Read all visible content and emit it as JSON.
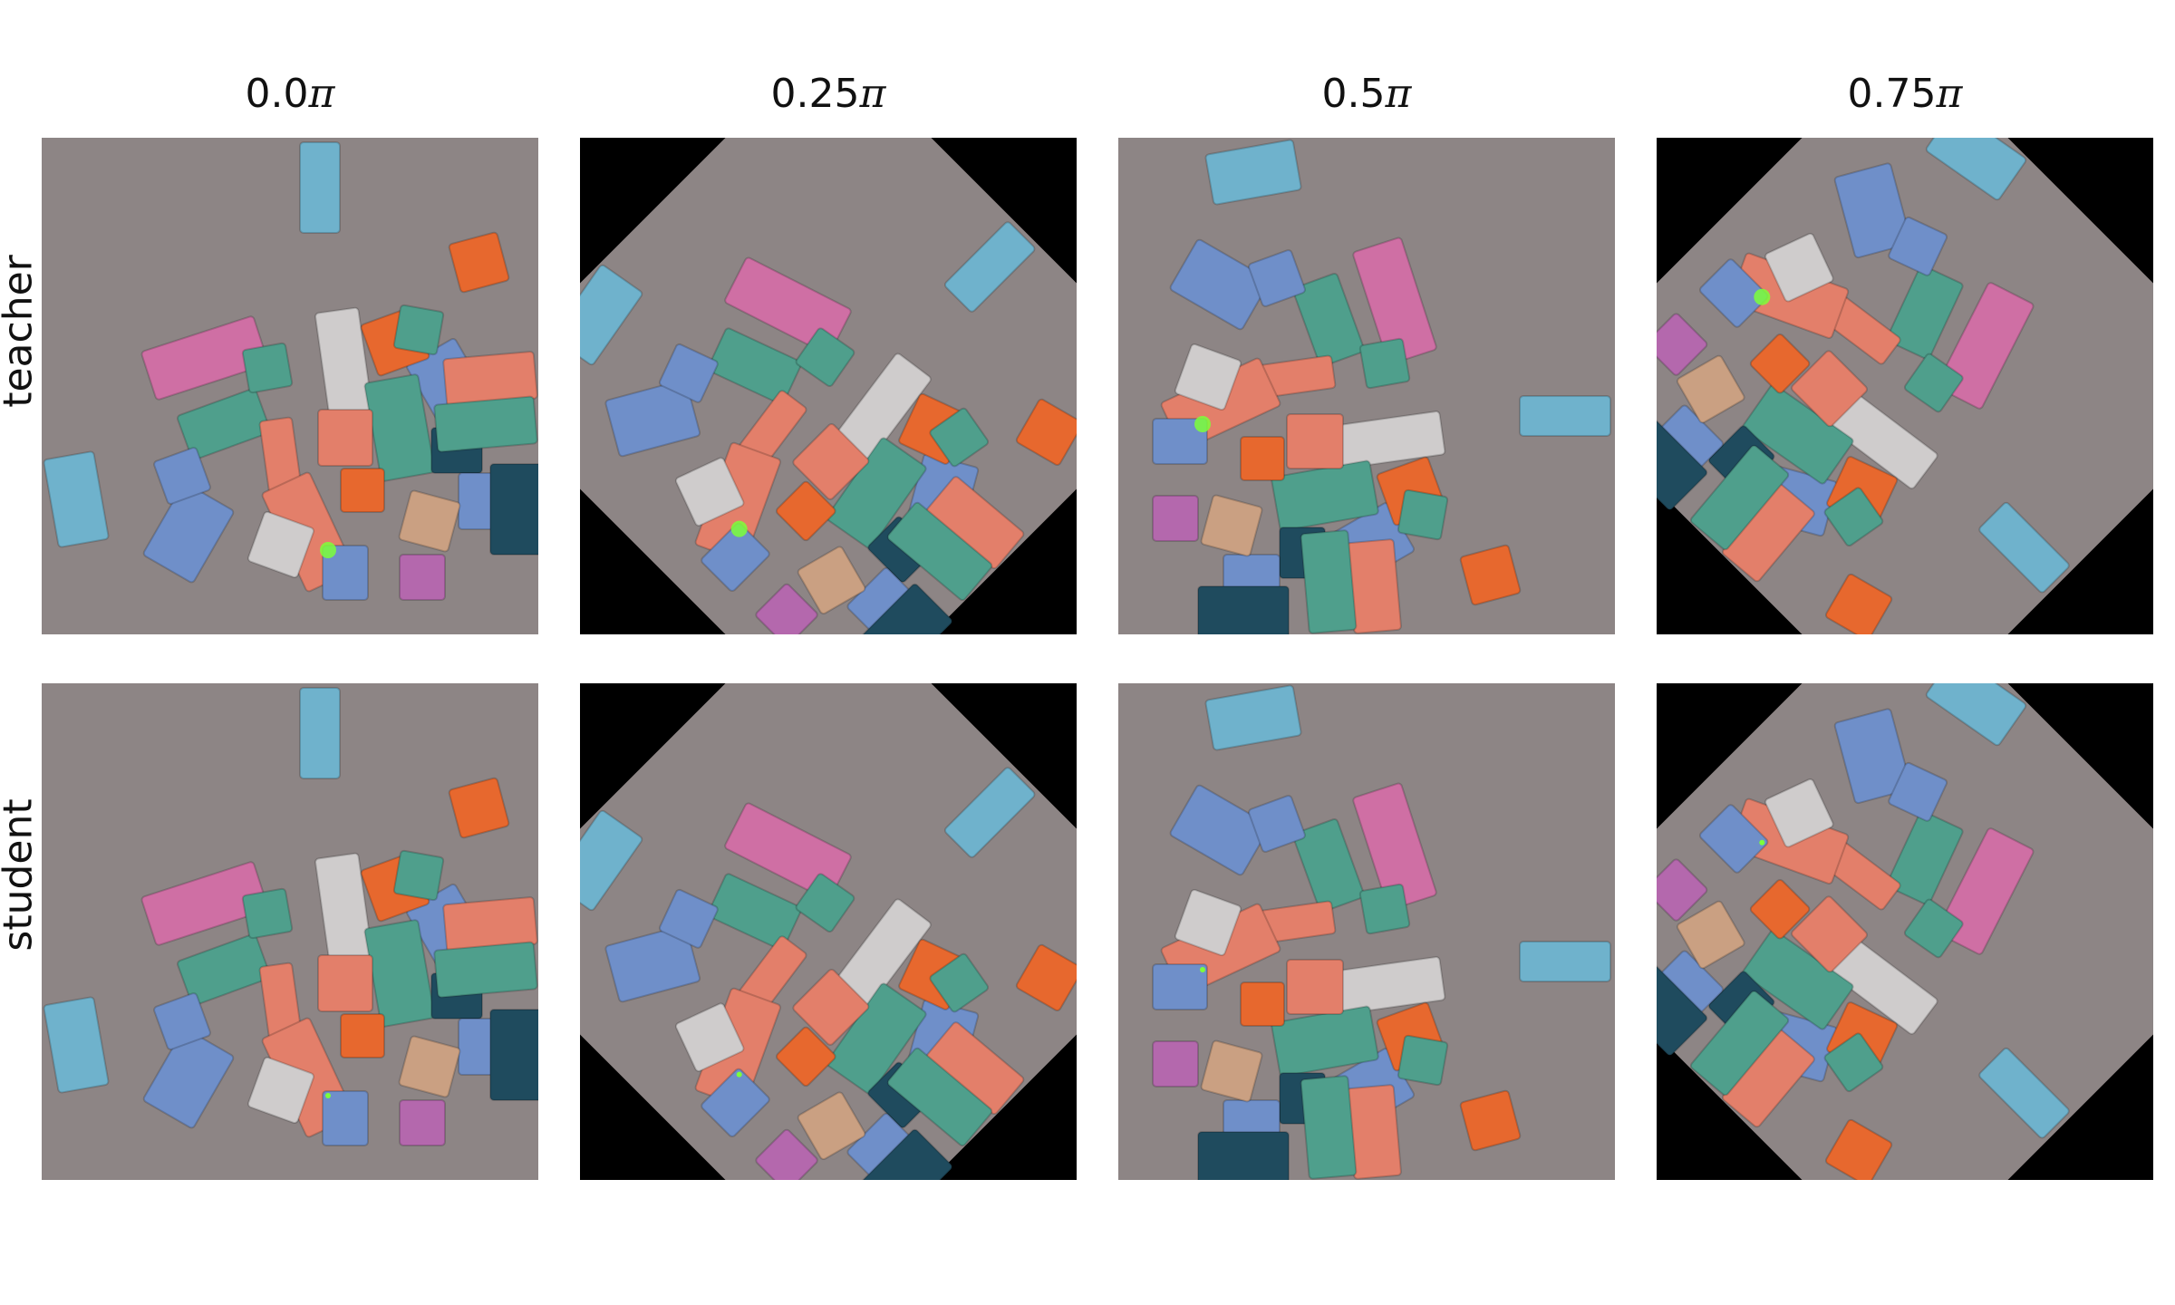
{
  "columns": [
    {
      "prefix": "0.0",
      "pi": "π"
    },
    {
      "prefix": "0.25",
      "pi": "π"
    },
    {
      "prefix": "0.5",
      "pi": "π"
    },
    {
      "prefix": "0.75",
      "pi": "π"
    }
  ],
  "rows": [
    "teacher",
    "student"
  ],
  "palette": {
    "background_floor": "#8d8585",
    "pink": "#cf6fa4",
    "teal": "#4f9f8c",
    "slate_blue": "#6f8fc9",
    "light_blue": "#6fb2cc",
    "salmon": "#e37f6a",
    "orange": "#e7682e",
    "white_block": "#cfcccc",
    "dark_teal": "#1f4b5e",
    "tan": "#caa082",
    "magenta": "#b468ad",
    "highlight_green": "#7dff3a"
  }
}
